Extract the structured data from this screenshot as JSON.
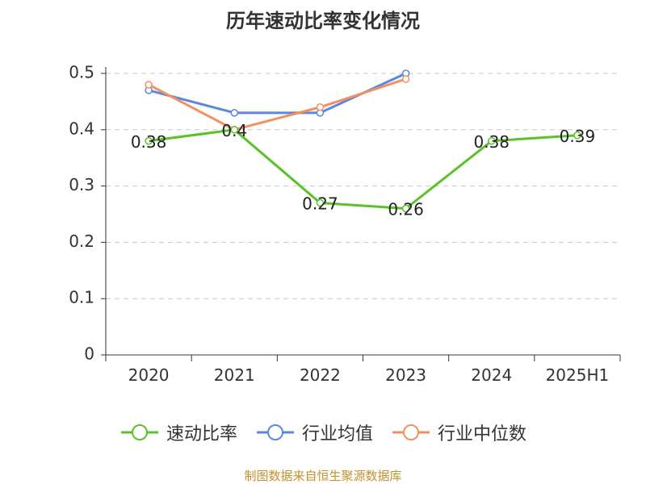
{
  "chart_data": {
    "type": "line",
    "title": "历年速动比率变化情况",
    "categories": [
      "2020",
      "2021",
      "2022",
      "2023",
      "2024",
      "2025H1"
    ],
    "y_ticks": [
      "0",
      "0.1",
      "0.2",
      "0.3",
      "0.4",
      "0.5"
    ],
    "ylim": [
      0,
      0.5
    ],
    "grid": true,
    "legend_position": "bottom",
    "series": [
      {
        "name": "速动比率",
        "color": "#5ac228",
        "values": [
          0.38,
          0.4,
          0.27,
          0.26,
          0.38,
          0.39
        ],
        "labels": [
          "0.38",
          "0.4",
          "0.27",
          "0.26",
          "0.38",
          "0.39"
        ]
      },
      {
        "name": "行业均值",
        "color": "#5b87df",
        "values": [
          0.47,
          0.43,
          0.43,
          0.5,
          null,
          null
        ],
        "labels": null
      },
      {
        "name": "行业中位数",
        "color": "#f3905f",
        "values": [
          0.48,
          0.4,
          0.44,
          0.49,
          null,
          null
        ],
        "labels": null
      }
    ]
  },
  "source_text": "制图数据来自恒生聚源数据库"
}
